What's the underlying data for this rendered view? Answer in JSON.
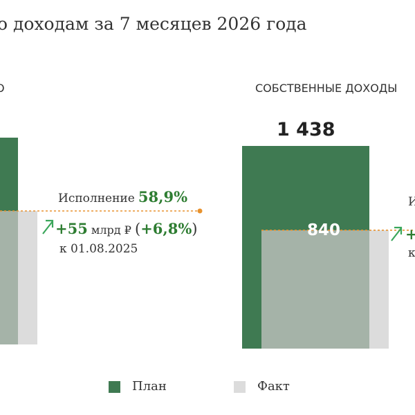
{
  "title": "о доходам за 7 месяцев 2026 года",
  "colors": {
    "plan": "#3f7a52",
    "fact_overlay": "#a5b3a8",
    "fact_tail": "#dcdcdc",
    "execution_line": "#e8922e",
    "accent_green": "#2e7d32",
    "arrow": "#3aa65a"
  },
  "legend": {
    "plan_label": "План",
    "fact_label": "Факт",
    "placement": "bottom"
  },
  "panels": [
    {
      "title": "О",
      "execution_label": "Исполнение",
      "execution_value": "58,9%",
      "delta_value": "+55",
      "delta_unit": "млрд ₽",
      "delta_paren_open": "(",
      "delta_percent": "+6,8%",
      "delta_paren_close": ")",
      "date_label": "к 01.08.2025",
      "arrow_icon": "arrow-up-right-icon"
    },
    {
      "title": "СОБСТВЕННЫЕ ДОХОДЫ",
      "plan_value_label": "1 438",
      "fact_value_label": "840",
      "execution_label_partial": "И",
      "delta_partial": "+",
      "date_partial": "к",
      "arrow_icon": "arrow-up-right-icon"
    }
  ],
  "chart_data": {
    "type": "bar",
    "legend_placement": "bottom",
    "grid": false,
    "series": [
      {
        "name": "План",
        "values": [
          null,
          1438
        ]
      },
      {
        "name": "Факт",
        "values": [
          null,
          840
        ]
      }
    ],
    "execution_rates": [
      "58,9%",
      null
    ]
  }
}
